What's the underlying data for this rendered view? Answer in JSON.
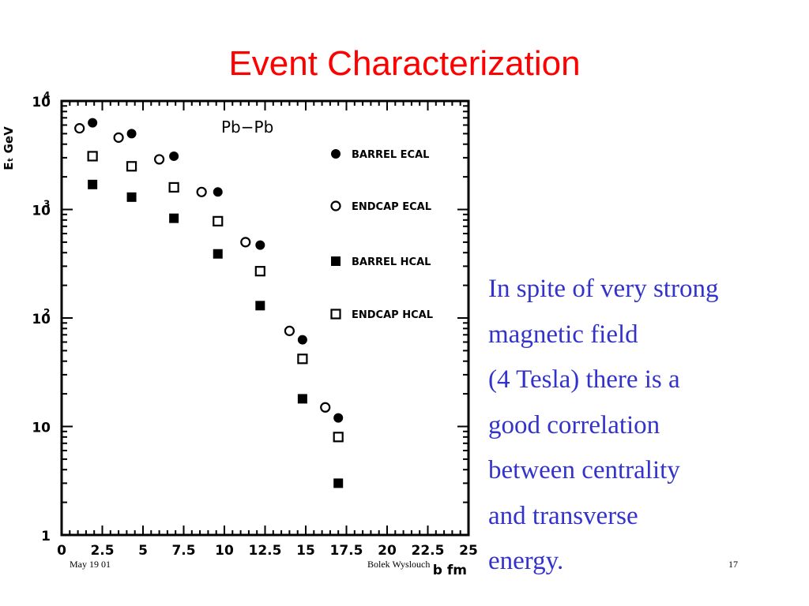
{
  "slide": {
    "title": "Event Characterization",
    "body_lines": [
      "In spite of very strong",
      "magnetic field",
      "(4 Tesla) there is a",
      "good correlation",
      "between centrality",
      "and transverse",
      "energy."
    ],
    "footer": {
      "date": "May 19 01",
      "author": "Bolek Wyslouch",
      "page": "17"
    },
    "colors": {
      "title": "#ff0000",
      "body": "#3333cc"
    }
  },
  "chart_data": {
    "type": "scatter",
    "annotation": "Pb−Pb",
    "ylabel": "E_T GeV",
    "xlabel": "b fm",
    "xlim": [
      0,
      25
    ],
    "ylim": [
      1,
      10000
    ],
    "y_scale": "log",
    "x_ticks": [
      "0",
      "2.5",
      "5",
      "7.5",
      "10",
      "12.5",
      "15",
      "17.5",
      "20",
      "22.5",
      "25"
    ],
    "y_ticks": [
      {
        "value": 1,
        "label": "1"
      },
      {
        "value": 10,
        "label": "10"
      },
      {
        "value": 100,
        "label": "10",
        "exp": "2"
      },
      {
        "value": 1000,
        "label": "10",
        "exp": "3"
      },
      {
        "value": 10000,
        "label": "10",
        "exp": "4"
      }
    ],
    "legend_position": "right",
    "series": [
      {
        "name": "BARREL ECAL",
        "marker": "filled-circle",
        "x": [
          1.9,
          4.3,
          6.9,
          9.6,
          12.2,
          14.8,
          17.0
        ],
        "y": [
          6300,
          5000,
          3100,
          1450,
          470,
          63,
          12
        ]
      },
      {
        "name": "ENDCAP ECAL",
        "marker": "open-circle",
        "x": [
          1.1,
          3.5,
          6.0,
          8.6,
          11.3,
          14.0,
          16.2
        ],
        "y": [
          5600,
          4600,
          2900,
          1450,
          500,
          76,
          15
        ]
      },
      {
        "name": "BARREL HCAL",
        "marker": "filled-square",
        "x": [
          1.9,
          4.3,
          6.9,
          9.6,
          12.2,
          14.8,
          17.0
        ],
        "y": [
          1700,
          1300,
          830,
          390,
          130,
          18,
          3
        ]
      },
      {
        "name": "ENDCAP HCAL",
        "marker": "open-square",
        "x": [
          1.9,
          4.3,
          6.9,
          9.6,
          12.2,
          14.8,
          17.0
        ],
        "y": [
          3100,
          2500,
          1600,
          780,
          270,
          42,
          8
        ]
      }
    ]
  }
}
